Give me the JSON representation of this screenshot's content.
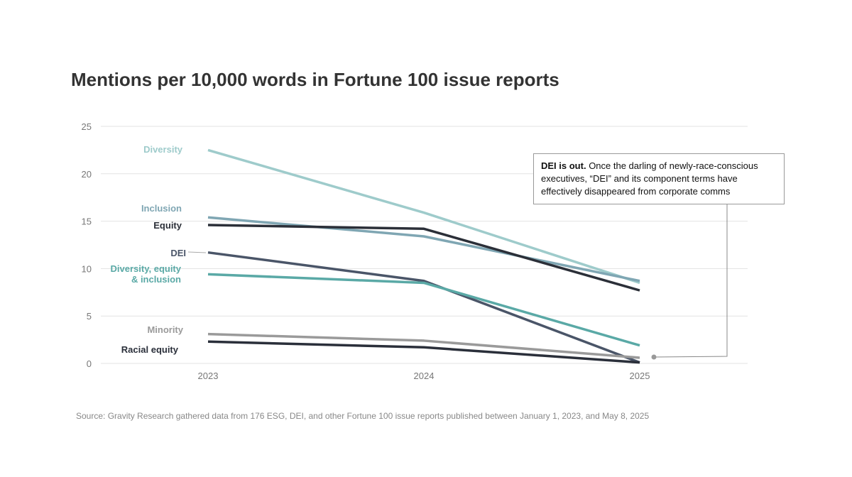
{
  "chart_data": {
    "type": "line",
    "title": "Mentions per 10,000 words in Fortune 100 issue reports",
    "categories": [
      "2023",
      "2024",
      "2025"
    ],
    "series": [
      {
        "name": "Diversity",
        "color": "#9ecbcb",
        "values": [
          22.5,
          15.9,
          8.5
        ]
      },
      {
        "name": "Inclusion",
        "color": "#7fa6b3",
        "values": [
          15.4,
          13.4,
          8.7
        ]
      },
      {
        "name": "Equity",
        "color": "#2b2f38",
        "values": [
          14.6,
          14.2,
          7.7
        ]
      },
      {
        "name": "DEI",
        "color": "#4a5568",
        "values": [
          11.7,
          8.7,
          0.1
        ]
      },
      {
        "name": "Diversity, equity & inclusion",
        "color": "#5aa9a6",
        "values": [
          9.4,
          8.5,
          1.9
        ]
      },
      {
        "name": "Minority",
        "color": "#9a9a9a",
        "values": [
          3.1,
          2.4,
          0.6
        ]
      },
      {
        "name": "Racial equity",
        "color": "#2a2f3a",
        "values": [
          2.3,
          1.7,
          0.1
        ]
      }
    ],
    "ylim": [
      0,
      25
    ],
    "yticks": [
      0,
      5,
      10,
      15,
      20,
      25
    ],
    "grid": true,
    "annotation": {
      "title": "DEI is out.",
      "text": "Once the darling of newly-race-conscious executives, “DEI” and its component terms have effectively disappeared from corporate comms"
    },
    "source": "Source: Gravity Research gathered data from 176 ESG, DEI, and other Fortune 100 issue reports published between January 1, 2023, and May 8, 2025"
  }
}
